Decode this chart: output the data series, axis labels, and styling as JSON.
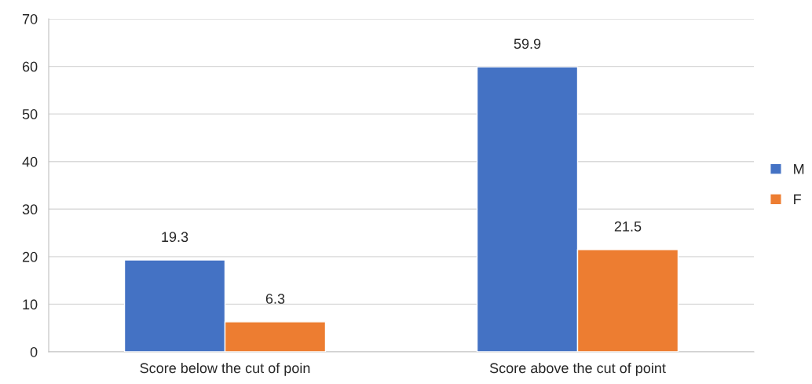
{
  "chart_data": {
    "type": "bar",
    "categories": [
      "Score below the cut of poin",
      "Score above the cut of point"
    ],
    "series": [
      {
        "name": "M",
        "color": "#4472c4",
        "values": [
          19.3,
          59.9
        ]
      },
      {
        "name": "F",
        "color": "#ed7d31",
        "values": [
          6.3,
          21.5
        ]
      }
    ],
    "ylim": [
      0,
      70
    ],
    "yticks": [
      0,
      10,
      20,
      30,
      40,
      50,
      60,
      70
    ],
    "grid": "y",
    "legend": "right",
    "data_labels": true
  }
}
